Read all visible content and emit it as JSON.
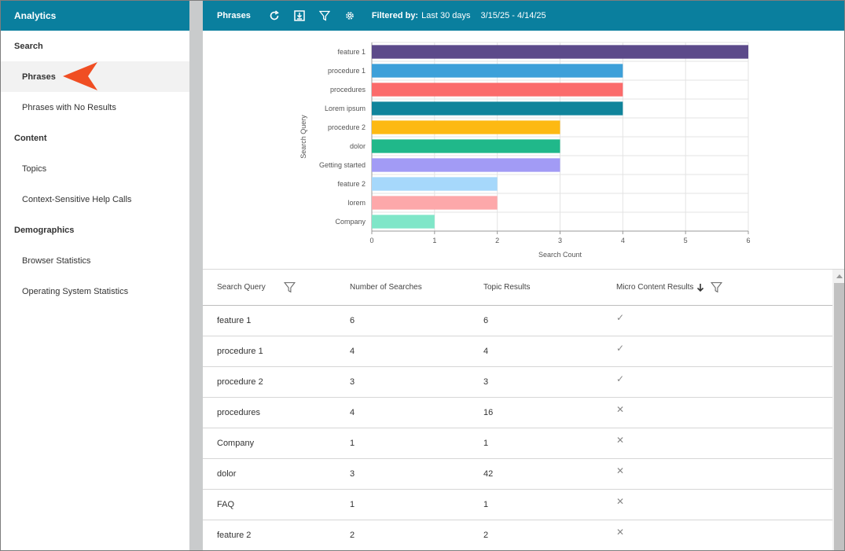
{
  "app": {
    "title": "Analytics"
  },
  "sidebar": {
    "sections": [
      {
        "label": "Search",
        "items": [
          {
            "label": "Phrases",
            "active": true
          },
          {
            "label": "Phrases with No Results"
          }
        ]
      },
      {
        "label": "Content",
        "items": [
          {
            "label": "Topics"
          },
          {
            "label": "Context-Sensitive Help Calls"
          }
        ]
      },
      {
        "label": "Demographics",
        "items": [
          {
            "label": "Browser Statistics"
          },
          {
            "label": "Operating System Statistics"
          }
        ]
      }
    ]
  },
  "toolbar": {
    "title": "Phrases",
    "icons": [
      "refresh-icon",
      "download-icon",
      "filter-icon",
      "gear-icon"
    ],
    "filter_label": "Filtered by:",
    "filter_value": "Last 30 days",
    "date_range": "3/15/25 - 4/14/25"
  },
  "chart_data": {
    "type": "bar",
    "orientation": "horizontal",
    "categories": [
      "feature 1",
      "procedure 1",
      "procedures",
      "Lorem ipsum",
      "procedure 2",
      "dolor",
      "Getting started",
      "feature 2",
      "lorem",
      "Company"
    ],
    "values": [
      6,
      4,
      4,
      4,
      3,
      3,
      3,
      2,
      2,
      1
    ],
    "colors": [
      "#5c4a8a",
      "#3da0d9",
      "#fb6b6b",
      "#10849b",
      "#fdb913",
      "#20b88a",
      "#a29bf5",
      "#a6d8fb",
      "#fda8aa",
      "#7fe6c8"
    ],
    "xlabel": "Search Count",
    "ylabel": "Search Query",
    "xlim": [
      0,
      6
    ],
    "xticks": [
      "0",
      "1",
      "2",
      "3",
      "4",
      "5",
      "6"
    ],
    "grid": true
  },
  "table": {
    "columns": [
      "Search Query",
      "Number of Searches",
      "Topic Results",
      "Micro Content Results"
    ],
    "rows": [
      {
        "query": "feature 1",
        "searches": "6",
        "topics": "6",
        "micro": "✓"
      },
      {
        "query": "procedure 1",
        "searches": "4",
        "topics": "4",
        "micro": "✓"
      },
      {
        "query": "procedure 2",
        "searches": "3",
        "topics": "3",
        "micro": "✓"
      },
      {
        "query": "procedures",
        "searches": "4",
        "topics": "16",
        "micro": "✕"
      },
      {
        "query": "Company",
        "searches": "1",
        "topics": "1",
        "micro": "✕"
      },
      {
        "query": "dolor",
        "searches": "3",
        "topics": "42",
        "micro": "✕"
      },
      {
        "query": "FAQ",
        "searches": "1",
        "topics": "1",
        "micro": "✕"
      },
      {
        "query": "feature 2",
        "searches": "2",
        "topics": "2",
        "micro": "✕"
      }
    ]
  },
  "colors": {
    "header_bg": "#0a7f9e",
    "pointer": "#f04e23"
  }
}
